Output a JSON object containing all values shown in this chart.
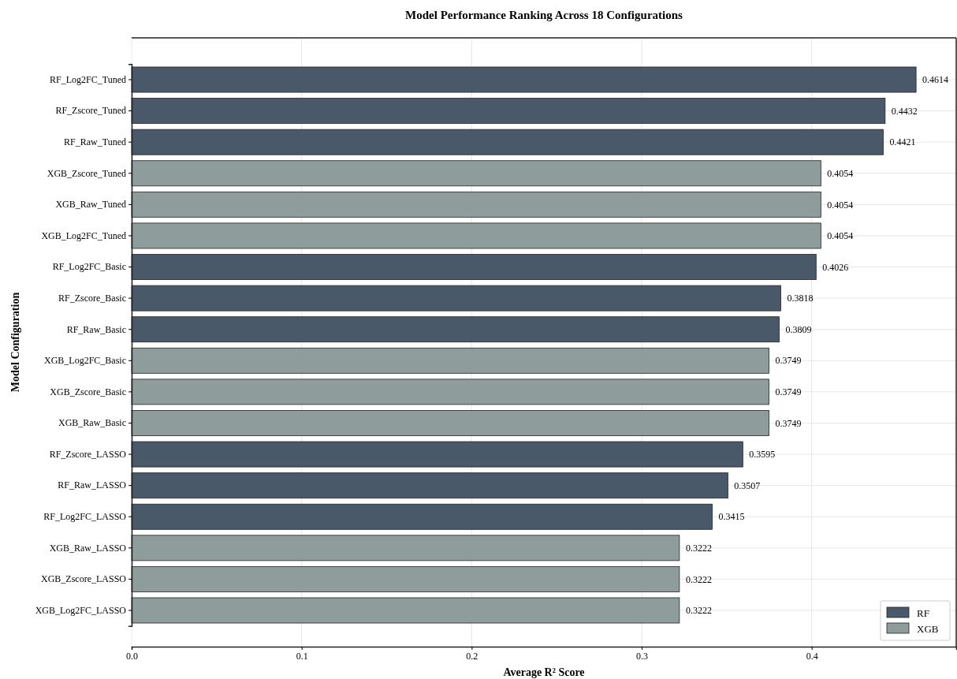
{
  "chart_data": {
    "type": "bar",
    "orientation": "horizontal",
    "title": "Model Performance Ranking Across 18 Configurations",
    "xlabel": "Average R² Score",
    "ylabel": "Model Configuration",
    "categories": [
      "RF_Log2FC_Tuned",
      "RF_Zscore_Tuned",
      "RF_Raw_Tuned",
      "XGB_Zscore_Tuned",
      "XGB_Raw_Tuned",
      "XGB_Log2FC_Tuned",
      "RF_Log2FC_Basic",
      "RF_Zscore_Basic",
      "RF_Raw_Basic",
      "XGB_Log2FC_Basic",
      "XGB_Zscore_Basic",
      "XGB_Raw_Basic",
      "RF_Zscore_LASSO",
      "RF_Raw_LASSO",
      "RF_Log2FC_LASSO",
      "XGB_Raw_LASSO",
      "XGB_Zscore_LASSO",
      "XGB_Log2FC_LASSO"
    ],
    "series": [
      {
        "name": "RF",
        "color": "#4a5969",
        "values": [
          0.4614,
          0.4432,
          0.4421,
          null,
          null,
          null,
          0.4026,
          0.3818,
          0.3809,
          null,
          null,
          null,
          0.3595,
          0.3507,
          0.3415,
          null,
          null,
          null
        ]
      },
      {
        "name": "XGB",
        "color": "#8f9c9c",
        "values": [
          null,
          null,
          null,
          0.4054,
          0.4054,
          0.4054,
          null,
          null,
          null,
          0.3749,
          0.3749,
          0.3749,
          null,
          null,
          null,
          0.3222,
          0.3222,
          0.3222
        ]
      }
    ],
    "xlim": [
      0,
      0.485
    ],
    "xticks": [
      {
        "value": 0,
        "label": "0.0"
      },
      0.1,
      0.2,
      0.3,
      0.4
    ],
    "grid": true,
    "legend": "bottom right",
    "data_labels": true
  }
}
